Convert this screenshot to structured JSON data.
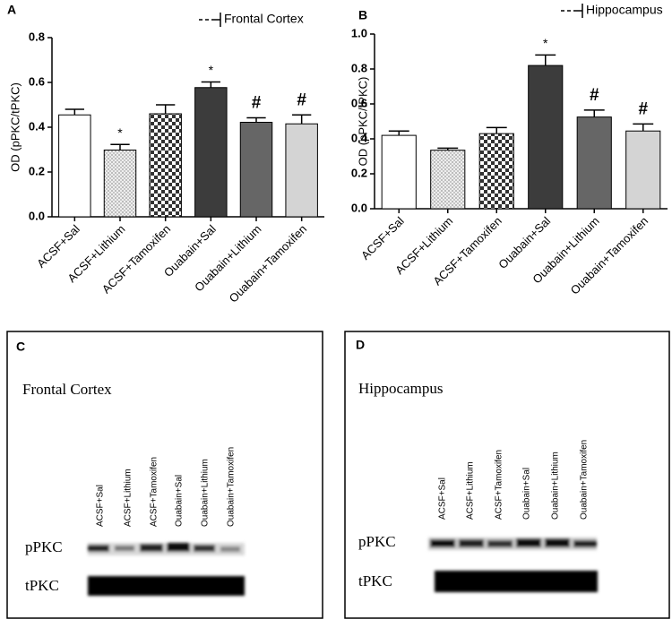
{
  "chart_data": [
    {
      "type": "bar",
      "panel_label": "A",
      "y_label": "OD (pPKC/tPKC)",
      "categories": [
        "ACSF+Sal",
        "ACSF+Lithium",
        "ACSF+Tamoxifen",
        "Ouabain+Sal",
        "Ouabain+Lithium",
        "Ouabain+Tamoxifen"
      ],
      "series": [
        {
          "name": "Frontal Cortex",
          "values": [
            0.455,
            0.298,
            0.46,
            0.577,
            0.422,
            0.415
          ],
          "errors": [
            0.025,
            0.025,
            0.04,
            0.025,
            0.02,
            0.04
          ]
        }
      ],
      "fills": [
        "white",
        "dots",
        "checker",
        "#3c3c3c",
        "#666666",
        "#d4d4d4"
      ],
      "annotations": [
        {
          "index": 1,
          "text": "*"
        },
        {
          "index": 3,
          "text": "*"
        },
        {
          "index": 4,
          "text": "#"
        },
        {
          "index": 5,
          "text": "#"
        }
      ],
      "ylim": [
        0,
        0.8
      ],
      "yticks": [
        {
          "value": 0,
          "label": "0.0"
        },
        {
          "value": 0.2,
          "label": "0.2"
        },
        {
          "value": 0.4,
          "label": "0.4"
        },
        {
          "value": 0.6,
          "label": "0.6"
        },
        {
          "value": 0.8,
          "label": "0.8"
        }
      ]
    },
    {
      "type": "bar",
      "panel_label": "B",
      "y_label": "OD (pPKC/tPKC)",
      "categories": [
        "ACSF+Sal",
        "ACSF+Lithium",
        "ACSF+Tamoxifen",
        "Ouabain+Sal",
        "Ouabain+Lithium",
        "Ouabain+Tamoxifen"
      ],
      "series": [
        {
          "name": "Hippocampus",
          "values": [
            0.42,
            0.335,
            0.43,
            0.82,
            0.525,
            0.445
          ],
          "errors": [
            0.025,
            0.012,
            0.035,
            0.06,
            0.04,
            0.04
          ]
        }
      ],
      "fills": [
        "white",
        "dots",
        "checker",
        "#3c3c3c",
        "#666666",
        "#d4d4d4"
      ],
      "annotations": [
        {
          "index": 3,
          "text": "*"
        },
        {
          "index": 4,
          "text": "#"
        },
        {
          "index": 5,
          "text": "#"
        }
      ],
      "ylim": [
        0,
        1.0
      ],
      "yticks": [
        {
          "value": 0,
          "label": "0.0"
        },
        {
          "value": 0.2,
          "label": "0.2"
        },
        {
          "value": 0.4,
          "label": "0.4"
        },
        {
          "value": 0.6,
          "label": "0.6"
        },
        {
          "value": 0.8,
          "label": "0.8"
        },
        {
          "value": 1.0,
          "label": "1.0"
        }
      ]
    }
  ],
  "panels": [
    {
      "letter": "C",
      "title": "Frontal Cortex",
      "lanes": [
        "ACSF+Sal",
        "ACSF+Lithium",
        "ACSF+Tamoxifen",
        "Ouabain+Sal",
        "Ouabain+Lithium",
        "Ouabain+Tamoxifen"
      ],
      "rows": [
        "pPKC",
        "tPKC"
      ]
    },
    {
      "letter": "D",
      "title": "Hippocampus",
      "lanes": [
        "ACSF+Sal",
        "ACSF+Lithium",
        "ACSF+Tamoxifen",
        "Ouabain+Sal",
        "Ouabain+Lithium",
        "Ouabain+Tamoxifen"
      ],
      "rows": [
        "pPKC",
        "tPKC"
      ]
    }
  ]
}
